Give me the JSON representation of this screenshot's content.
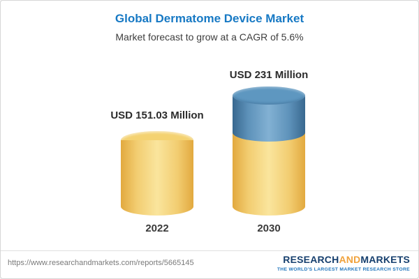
{
  "chart_data": {
    "type": "bar",
    "title": "Global Dermatome Device Market",
    "subtitle": "Market forecast to grow at a CAGR of 5.6%",
    "categories": [
      "2022",
      "2030"
    ],
    "values": [
      151.03,
      231
    ],
    "value_labels": [
      "USD 151.03 Million",
      "USD 231 Million"
    ],
    "unit": "USD Million",
    "cagr": "5.6%",
    "ylim": [
      0,
      231
    ],
    "grid": false,
    "legend": "none",
    "colors": {
      "base_segment": "#f2cd71",
      "growth_segment": "#5e92ba",
      "title": "#1779c4"
    },
    "notes": "2030 bar is a stacked cylinder: yellow base portion equal to 2022 value, blue top portion representing growth to USD 231 Million"
  },
  "footer": {
    "url": "https://www.researchandmarkets.com/reports/5665145",
    "brand": {
      "part1": "RESEARCH",
      "part2": "AND",
      "part3": "MARKETS",
      "tagline": "THE WORLD'S LARGEST MARKET RESEARCH STORE"
    }
  }
}
